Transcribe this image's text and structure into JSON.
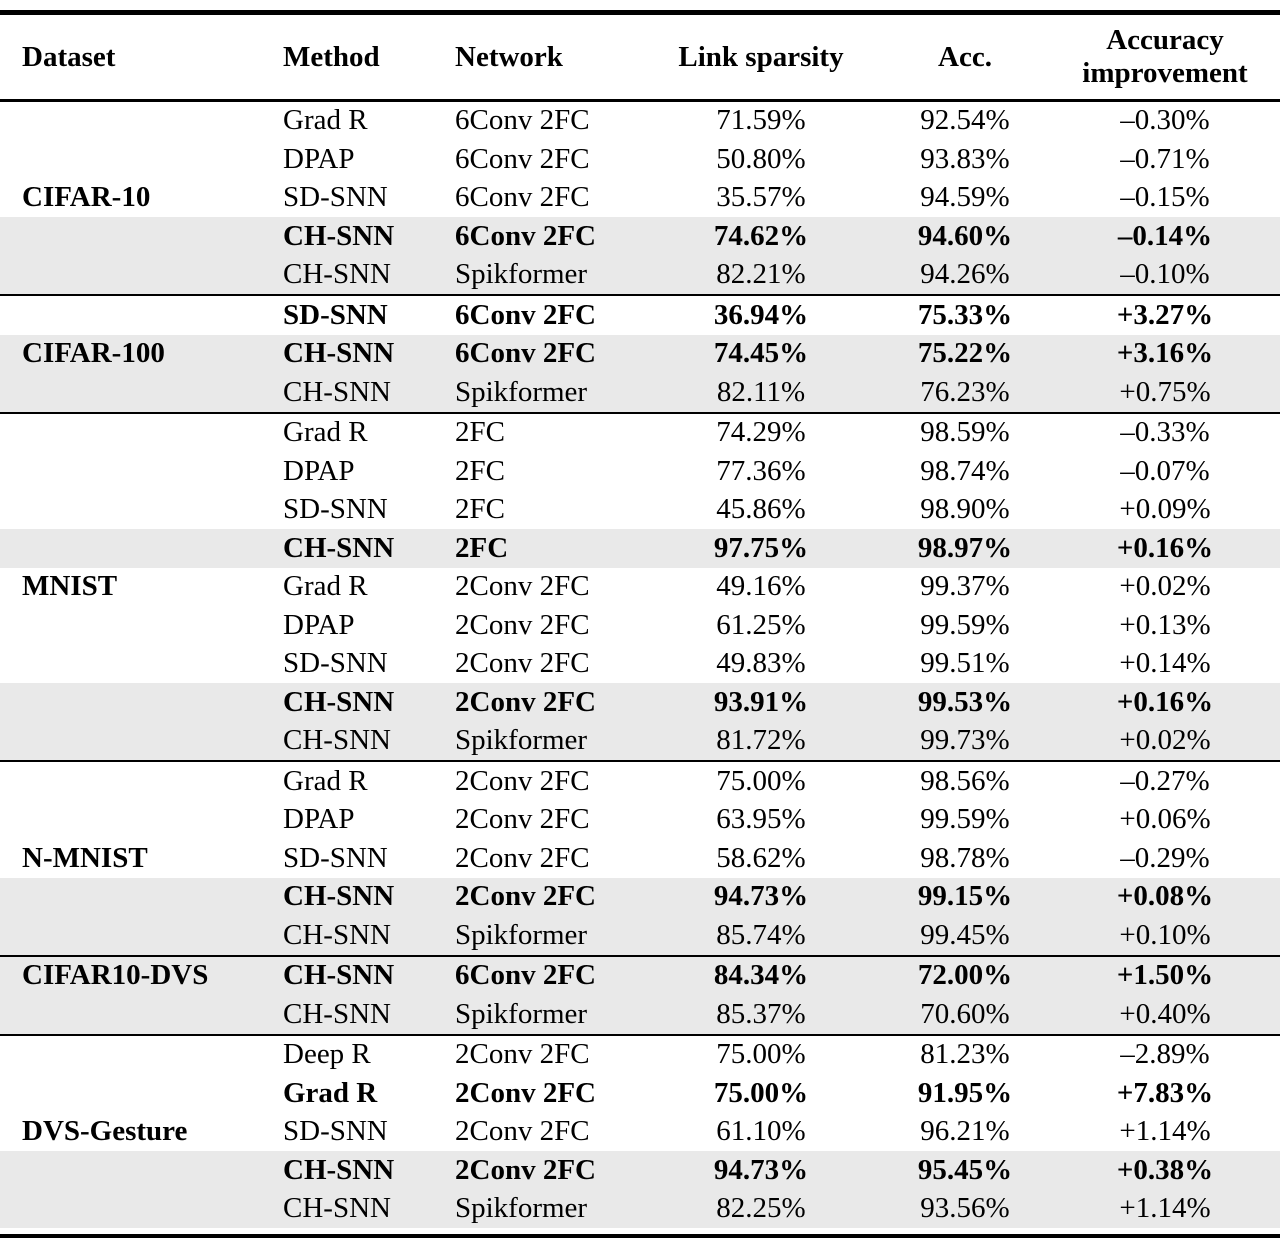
{
  "colors": {
    "highlight_row_bg": "#e9e9e9",
    "rule": "#000000",
    "text": "#000000",
    "page_bg": "#ffffff"
  },
  "table": {
    "columns": [
      "Dataset",
      "Method",
      "Network",
      "Link sparsity",
      "Acc.",
      "Accuracy improvement"
    ],
    "groups": [
      {
        "dataset": "CIFAR-10",
        "label_row": 2,
        "rows": [
          {
            "method": "Grad R",
            "network": "6Conv 2FC",
            "sparsity": "71.59%",
            "acc": "92.54%",
            "improve": "–0.30%",
            "bold": false,
            "highlight": false
          },
          {
            "method": "DPAP",
            "network": "6Conv 2FC",
            "sparsity": "50.80%",
            "acc": "93.83%",
            "improve": "–0.71%",
            "bold": false,
            "highlight": false
          },
          {
            "method": "SD-SNN",
            "network": "6Conv 2FC",
            "sparsity": "35.57%",
            "acc": "94.59%",
            "improve": "–0.15%",
            "bold": false,
            "highlight": false
          },
          {
            "method": "CH-SNN",
            "network": "6Conv 2FC",
            "sparsity": "74.62%",
            "acc": "94.60%",
            "improve": "–0.14%",
            "bold": true,
            "highlight": true
          },
          {
            "method": "CH-SNN",
            "network": "Spikformer",
            "sparsity": "82.21%",
            "acc": "94.26%",
            "improve": "–0.10%",
            "bold": false,
            "highlight": true
          }
        ]
      },
      {
        "dataset": "CIFAR-100",
        "label_row": 1,
        "rows": [
          {
            "method": "SD-SNN",
            "network": "6Conv 2FC",
            "sparsity": "36.94%",
            "acc": "75.33%",
            "improve": "+3.27%",
            "bold": true,
            "highlight": false
          },
          {
            "method": "CH-SNN",
            "network": "6Conv 2FC",
            "sparsity": "74.45%",
            "acc": "75.22%",
            "improve": "+3.16%",
            "bold": true,
            "highlight": true
          },
          {
            "method": "CH-SNN",
            "network": "Spikformer",
            "sparsity": "82.11%",
            "acc": "76.23%",
            "improve": "+0.75%",
            "bold": false,
            "highlight": true
          }
        ]
      },
      {
        "dataset": "MNIST",
        "label_row": 4,
        "rows": [
          {
            "method": "Grad R",
            "network": "2FC",
            "sparsity": "74.29%",
            "acc": "98.59%",
            "improve": "–0.33%",
            "bold": false,
            "highlight": false
          },
          {
            "method": "DPAP",
            "network": "2FC",
            "sparsity": "77.36%",
            "acc": "98.74%",
            "improve": "–0.07%",
            "bold": false,
            "highlight": false
          },
          {
            "method": "SD-SNN",
            "network": "2FC",
            "sparsity": "45.86%",
            "acc": "98.90%",
            "improve": "+0.09%",
            "bold": false,
            "highlight": false
          },
          {
            "method": "CH-SNN",
            "network": "2FC",
            "sparsity": "97.75%",
            "acc": "98.97%",
            "improve": "+0.16%",
            "bold": true,
            "highlight": true
          },
          {
            "method": "Grad R",
            "network": "2Conv 2FC",
            "sparsity": "49.16%",
            "acc": "99.37%",
            "improve": "+0.02%",
            "bold": false,
            "highlight": false
          },
          {
            "method": "DPAP",
            "network": "2Conv 2FC",
            "sparsity": "61.25%",
            "acc": "99.59%",
            "improve": "+0.13%",
            "bold": false,
            "highlight": false
          },
          {
            "method": "SD-SNN",
            "network": "2Conv 2FC",
            "sparsity": "49.83%",
            "acc": "99.51%",
            "improve": "+0.14%",
            "bold": false,
            "highlight": false
          },
          {
            "method": "CH-SNN",
            "network": "2Conv 2FC",
            "sparsity": "93.91%",
            "acc": "99.53%",
            "improve": "+0.16%",
            "bold": true,
            "highlight": true
          },
          {
            "method": "CH-SNN",
            "network": "Spikformer",
            "sparsity": "81.72%",
            "acc": "99.73%",
            "improve": "+0.02%",
            "bold": false,
            "highlight": true
          }
        ]
      },
      {
        "dataset": "N-MNIST",
        "label_row": 2,
        "rows": [
          {
            "method": "Grad R",
            "network": "2Conv 2FC",
            "sparsity": "75.00%",
            "acc": "98.56%",
            "improve": "–0.27%",
            "bold": false,
            "highlight": false
          },
          {
            "method": "DPAP",
            "network": "2Conv 2FC",
            "sparsity": "63.95%",
            "acc": "99.59%",
            "improve": "+0.06%",
            "bold": false,
            "highlight": false
          },
          {
            "method": "SD-SNN",
            "network": "2Conv 2FC",
            "sparsity": "58.62%",
            "acc": "98.78%",
            "improve": "–0.29%",
            "bold": false,
            "highlight": false
          },
          {
            "method": "CH-SNN",
            "network": "2Conv 2FC",
            "sparsity": "94.73%",
            "acc": "99.15%",
            "improve": "+0.08%",
            "bold": true,
            "highlight": true
          },
          {
            "method": "CH-SNN",
            "network": "Spikformer",
            "sparsity": "85.74%",
            "acc": "99.45%",
            "improve": "+0.10%",
            "bold": false,
            "highlight": true
          }
        ]
      },
      {
        "dataset": "CIFAR10-DVS",
        "label_row": 0,
        "rows": [
          {
            "method": "CH-SNN",
            "network": "6Conv 2FC",
            "sparsity": "84.34%",
            "acc": "72.00%",
            "improve": "+1.50%",
            "bold": true,
            "highlight": true
          },
          {
            "method": "CH-SNN",
            "network": "Spikformer",
            "sparsity": "85.37%",
            "acc": "70.60%",
            "improve": "+0.40%",
            "bold": false,
            "highlight": true
          }
        ]
      },
      {
        "dataset": "DVS-Gesture",
        "label_row": 2,
        "rows": [
          {
            "method": "Deep R",
            "network": "2Conv 2FC",
            "sparsity": "75.00%",
            "acc": "81.23%",
            "improve": "–2.89%",
            "bold": false,
            "highlight": false
          },
          {
            "method": "Grad R",
            "network": "2Conv 2FC",
            "sparsity": "75.00%",
            "acc": "91.95%",
            "improve": "+7.83%",
            "bold": true,
            "highlight": false
          },
          {
            "method": "SD-SNN",
            "network": "2Conv 2FC",
            "sparsity": "61.10%",
            "acc": "96.21%",
            "improve": "+1.14%",
            "bold": false,
            "highlight": false
          },
          {
            "method": "CH-SNN",
            "network": "2Conv 2FC",
            "sparsity": "94.73%",
            "acc": "95.45%",
            "improve": "+0.38%",
            "bold": true,
            "highlight": true
          },
          {
            "method": "CH-SNN",
            "network": "Spikformer",
            "sparsity": "82.25%",
            "acc": "93.56%",
            "improve": "+1.14%",
            "bold": false,
            "highlight": true
          }
        ]
      }
    ]
  }
}
